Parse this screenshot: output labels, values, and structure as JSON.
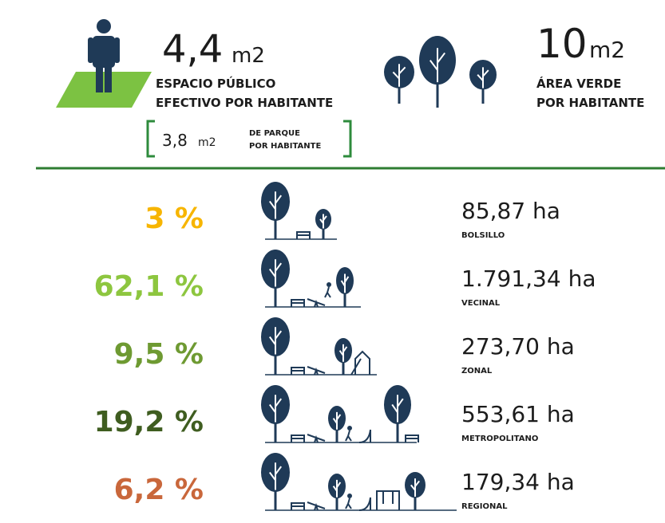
{
  "header": {
    "left": {
      "value": "4,4",
      "unit": "m2",
      "line1": "ESPACIO PÚBLICO",
      "line2": "EFECTIVO POR HABITANTE",
      "sub": {
        "value": "3,8",
        "unit": "m2",
        "line1": "DE PARQUE",
        "line2": "POR HABITANTE"
      }
    },
    "right": {
      "value": "10",
      "unit": "m2",
      "line1": "ÁREA VERDE",
      "line2": "POR HABITANTE"
    }
  },
  "rows": [
    {
      "percent": "3 %",
      "color": "#f7b500",
      "area": "85,87 ha",
      "label": "BOLSILLO"
    },
    {
      "percent": "62,1 %",
      "color": "#8dc63f",
      "area": "1.791,34 ha",
      "label": "VECINAL"
    },
    {
      "percent": "9,5 %",
      "color": "#6e9a32",
      "area": "273,70 ha",
      "label": "ZONAL"
    },
    {
      "percent": "19,2 %",
      "color": "#3f5d20",
      "area": "553,61 ha",
      "label": "METROPOLITANO"
    },
    {
      "percent": "6,2 %",
      "color": "#c9673b",
      "area": "179,34 ha",
      "label": "REGIONAL"
    }
  ]
}
